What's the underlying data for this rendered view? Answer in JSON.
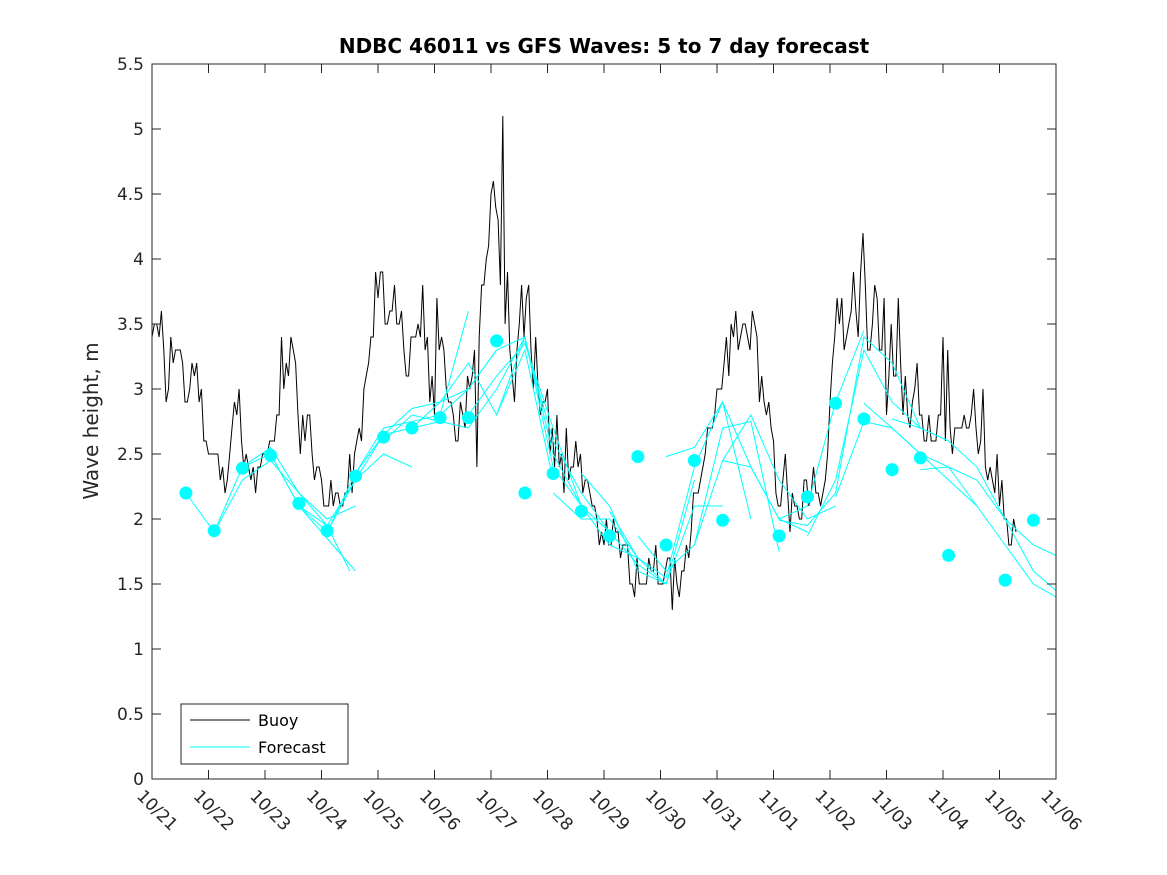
{
  "chart_data": {
    "type": "line",
    "title": "NDBC 46011 vs GFS Waves: 5 to 7 day forecast",
    "xlabel": "",
    "ylabel": "Wave height, m",
    "xlim_days": [
      0,
      16
    ],
    "ylim": [
      0,
      5.5
    ],
    "x_tick_labels": [
      "10/21",
      "10/22",
      "10/23",
      "10/24",
      "10/25",
      "10/26",
      "10/27",
      "10/28",
      "10/29",
      "10/30",
      "10/31",
      "11/01",
      "11/02",
      "11/03",
      "11/04",
      "11/05",
      "11/06"
    ],
    "y_tick_labels": [
      "0",
      "0.5",
      "1",
      "1.5",
      "2",
      "2.5",
      "3",
      "3.5",
      "4",
      "4.5",
      "5",
      "5.5"
    ],
    "y_ticks": [
      0,
      0.5,
      1,
      1.5,
      2,
      2.5,
      3,
      3.5,
      4,
      4.5,
      5,
      5.5
    ],
    "legend": {
      "placement": "bottom-left",
      "entries": [
        "Buoy",
        "Forecast"
      ]
    },
    "colors": {
      "buoy": "#000000",
      "forecast": "#00ffff",
      "axes": "#262626"
    },
    "buoy": {
      "name": "Buoy",
      "anchors": [
        [
          0.0,
          3.3
        ],
        [
          0.1,
          3.7
        ],
        [
          0.25,
          3.0
        ],
        [
          0.4,
          3.3
        ],
        [
          0.6,
          2.9
        ],
        [
          0.75,
          3.2
        ],
        [
          0.9,
          2.8
        ],
        [
          1.0,
          2.5
        ],
        [
          1.15,
          2.4
        ],
        [
          1.25,
          2.3
        ],
        [
          1.4,
          2.6
        ],
        [
          1.5,
          2.7
        ],
        [
          1.6,
          2.5
        ],
        [
          1.75,
          2.3
        ],
        [
          1.9,
          2.3
        ],
        [
          2.1,
          2.6
        ],
        [
          2.3,
          3.0
        ],
        [
          2.5,
          3.2
        ],
        [
          2.6,
          2.6
        ],
        [
          2.75,
          2.8
        ],
        [
          2.9,
          2.4
        ],
        [
          3.0,
          2.3
        ],
        [
          3.1,
          2.2
        ],
        [
          3.2,
          2.1
        ],
        [
          3.3,
          2.1
        ],
        [
          3.4,
          2.2
        ],
        [
          3.55,
          2.3
        ],
        [
          3.7,
          2.7
        ],
        [
          3.85,
          3.2
        ],
        [
          3.95,
          3.6
        ],
        [
          4.05,
          3.8
        ],
        [
          4.2,
          3.5
        ],
        [
          4.35,
          3.6
        ],
        [
          4.5,
          3.3
        ],
        [
          4.65,
          3.2
        ],
        [
          4.8,
          3.5
        ],
        [
          4.9,
          3.1
        ],
        [
          5.0,
          2.9
        ],
        [
          5.1,
          3.3
        ],
        [
          5.25,
          3.0
        ],
        [
          5.4,
          2.7
        ],
        [
          5.5,
          2.9
        ],
        [
          5.6,
          2.8
        ],
        [
          5.7,
          3.2
        ],
        [
          5.8,
          3.5
        ],
        [
          5.9,
          3.9
        ],
        [
          6.0,
          4.3
        ],
        [
          6.1,
          4.8
        ],
        [
          6.2,
          3.4
        ],
        [
          6.3,
          3.3
        ],
        [
          6.4,
          3.0
        ],
        [
          6.5,
          3.4
        ],
        [
          6.6,
          3.6
        ],
        [
          6.7,
          3.4
        ],
        [
          6.8,
          3.0
        ],
        [
          6.95,
          2.8
        ],
        [
          7.1,
          2.5
        ],
        [
          7.3,
          2.3
        ],
        [
          7.45,
          2.5
        ],
        [
          7.6,
          2.4
        ],
        [
          7.7,
          2.2
        ],
        [
          7.8,
          2.0
        ],
        [
          7.95,
          1.9
        ],
        [
          8.1,
          1.9
        ],
        [
          8.25,
          1.8
        ],
        [
          8.4,
          1.6
        ],
        [
          8.55,
          1.5
        ],
        [
          8.7,
          1.6
        ],
        [
          8.8,
          1.7
        ],
        [
          8.9,
          1.6
        ],
        [
          9.0,
          1.5
        ],
        [
          9.1,
          1.6
        ],
        [
          9.2,
          1.8
        ],
        [
          9.3,
          1.5
        ],
        [
          9.4,
          1.6
        ],
        [
          9.55,
          2.0
        ],
        [
          9.7,
          2.4
        ],
        [
          9.85,
          2.7
        ],
        [
          10.0,
          2.9
        ],
        [
          10.1,
          3.0
        ],
        [
          10.25,
          3.3
        ],
        [
          10.4,
          3.4
        ],
        [
          10.55,
          3.5
        ],
        [
          10.7,
          3.2
        ],
        [
          10.8,
          3.0
        ],
        [
          10.9,
          2.9
        ],
        [
          11.0,
          2.5
        ],
        [
          11.1,
          2.1
        ],
        [
          11.25,
          2.3
        ],
        [
          11.4,
          2.0
        ],
        [
          11.55,
          2.2
        ],
        [
          11.7,
          2.1
        ],
        [
          11.85,
          2.3
        ],
        [
          11.95,
          2.5
        ],
        [
          12.05,
          3.3
        ],
        [
          12.2,
          3.7
        ],
        [
          12.3,
          3.3
        ],
        [
          12.4,
          3.8
        ],
        [
          12.5,
          3.6
        ],
        [
          12.6,
          3.9
        ],
        [
          12.7,
          3.2
        ],
        [
          12.8,
          3.6
        ],
        [
          12.9,
          3.3
        ],
        [
          13.0,
          3.0
        ],
        [
          13.1,
          3.2
        ],
        [
          13.25,
          3.1
        ],
        [
          13.4,
          2.8
        ],
        [
          13.55,
          2.9
        ],
        [
          13.7,
          2.7
        ],
        [
          13.85,
          2.6
        ],
        [
          14.0,
          2.8
        ],
        [
          14.15,
          2.6
        ],
        [
          14.3,
          2.6
        ],
        [
          14.45,
          2.8
        ],
        [
          14.6,
          2.7
        ],
        [
          14.75,
          2.4
        ],
        [
          14.9,
          2.3
        ],
        [
          15.0,
          2.0
        ],
        [
          15.1,
          1.9
        ],
        [
          15.2,
          1.9
        ],
        [
          15.3,
          1.8
        ]
      ],
      "spikes": [
        [
          0.05,
          3.5
        ],
        [
          0.15,
          3.6
        ],
        [
          0.35,
          3.4
        ],
        [
          0.55,
          3.2
        ],
        [
          1.45,
          2.9
        ],
        [
          1.55,
          3.0
        ],
        [
          2.3,
          3.4
        ],
        [
          2.45,
          3.4
        ],
        [
          2.55,
          3.2
        ],
        [
          3.5,
          2.5
        ],
        [
          3.95,
          3.9
        ],
        [
          4.05,
          3.9
        ],
        [
          4.3,
          3.8
        ],
        [
          4.8,
          3.8
        ],
        [
          5.05,
          3.7
        ],
        [
          5.6,
          3.1
        ],
        [
          5.75,
          2.4
        ],
        [
          5.9,
          4.0
        ],
        [
          6.0,
          4.5
        ],
        [
          6.1,
          4.4
        ],
        [
          6.2,
          5.1
        ],
        [
          6.3,
          3.9
        ],
        [
          6.55,
          3.8
        ],
        [
          6.65,
          3.8
        ],
        [
          6.8,
          3.4
        ],
        [
          7.0,
          3.0
        ],
        [
          7.15,
          2.8
        ],
        [
          7.35,
          2.7
        ],
        [
          7.7,
          2.3
        ],
        [
          8.4,
          1.8
        ],
        [
          8.9,
          1.8
        ],
        [
          9.2,
          1.3
        ],
        [
          9.35,
          1.4
        ],
        [
          10.15,
          3.4
        ],
        [
          10.35,
          3.6
        ],
        [
          10.55,
          3.4
        ],
        [
          11.2,
          2.5
        ],
        [
          11.3,
          1.9
        ],
        [
          11.7,
          2.4
        ],
        [
          12.4,
          3.9
        ],
        [
          12.6,
          4.2
        ],
        [
          12.8,
          3.8
        ],
        [
          12.95,
          3.7
        ],
        [
          13.1,
          3.5
        ],
        [
          13.2,
          3.7
        ],
        [
          13.55,
          3.2
        ],
        [
          14.0,
          3.4
        ],
        [
          14.1,
          3.3
        ],
        [
          14.55,
          3.0
        ],
        [
          14.7,
          3.0
        ],
        [
          14.95,
          2.5
        ],
        [
          15.05,
          2.3
        ],
        [
          15.15,
          1.8
        ],
        [
          15.25,
          2.0
        ]
      ]
    },
    "forecast_runs": [
      {
        "name": "Forecast",
        "x": [
          0.6,
          1.1,
          1.6,
          2.1,
          2.6,
          3.0,
          3.4,
          3.6
        ],
        "y": [
          2.2,
          1.9,
          2.4,
          2.5,
          2.1,
          1.9,
          1.7,
          1.6
        ]
      },
      {
        "name": "Forecast",
        "x": [
          1.1,
          1.6,
          2.1,
          2.6,
          3.1,
          3.5
        ],
        "y": [
          1.9,
          2.3,
          2.45,
          2.2,
          1.95,
          1.6
        ]
      },
      {
        "name": "Forecast",
        "x": [
          1.6,
          2.1,
          2.6,
          3.1,
          3.6
        ],
        "y": [
          2.4,
          2.55,
          2.2,
          2.0,
          2.1
        ]
      },
      {
        "name": "Forecast",
        "x": [
          2.1,
          2.6,
          3.1,
          3.6,
          4.1,
          4.6
        ],
        "y": [
          2.5,
          2.1,
          1.95,
          2.3,
          2.5,
          2.4
        ]
      },
      {
        "name": "Forecast",
        "x": [
          2.6,
          3.1,
          3.6,
          4.1,
          4.6,
          5.1
        ],
        "y": [
          2.1,
          1.9,
          2.3,
          2.65,
          2.7,
          2.75
        ]
      },
      {
        "name": "Forecast",
        "x": [
          3.1,
          3.6,
          4.1,
          4.6,
          5.1,
          5.6
        ],
        "y": [
          1.9,
          2.35,
          2.7,
          2.75,
          2.8,
          3.6
        ]
      },
      {
        "name": "Forecast",
        "x": [
          3.6,
          4.1,
          4.6,
          5.1,
          5.6,
          6.1
        ],
        "y": [
          2.35,
          2.65,
          2.85,
          2.9,
          3.0,
          3.3
        ]
      },
      {
        "name": "Forecast",
        "x": [
          4.1,
          4.6,
          5.1,
          5.6,
          6.1,
          6.6
        ],
        "y": [
          2.6,
          2.8,
          2.75,
          2.7,
          3.0,
          3.4
        ]
      },
      {
        "name": "Forecast",
        "x": [
          4.6,
          5.1,
          5.6,
          6.1,
          6.6,
          7.1
        ],
        "y": [
          2.7,
          2.9,
          3.2,
          2.8,
          3.3,
          2.3
        ]
      },
      {
        "name": "Forecast",
        "x": [
          5.1,
          5.6,
          6.1,
          6.6,
          7.1,
          7.6
        ],
        "y": [
          2.8,
          3.0,
          3.3,
          3.4,
          2.5,
          2.1
        ]
      },
      {
        "name": "Forecast",
        "x": [
          5.6,
          6.1,
          6.6,
          7.1,
          7.6,
          8.1
        ],
        "y": [
          2.8,
          3.1,
          3.35,
          2.7,
          2.1,
          1.9
        ]
      },
      {
        "name": "Forecast",
        "x": [
          6.1,
          6.6,
          7.1,
          7.6,
          8.1,
          8.6
        ],
        "y": [
          2.8,
          3.4,
          2.4,
          2.1,
          1.8,
          1.7
        ]
      },
      {
        "name": "Forecast",
        "x": [
          6.6,
          7.1,
          7.6,
          8.1,
          8.6,
          9.1
        ],
        "y": [
          3.37,
          2.6,
          2.2,
          1.9,
          1.65,
          1.5
        ]
      },
      {
        "name": "Forecast",
        "x": [
          7.1,
          7.6,
          8.1,
          8.6,
          9.1,
          9.6
        ],
        "y": [
          2.2,
          2.0,
          2.0,
          1.7,
          1.5,
          2.3
        ]
      },
      {
        "name": "Forecast",
        "x": [
          7.6,
          8.1,
          8.6,
          9.1,
          9.6,
          10.1
        ],
        "y": [
          2.35,
          2.1,
          1.6,
          1.5,
          2.1,
          2.1
        ]
      },
      {
        "name": "Forecast",
        "x": [
          8.1,
          8.6,
          9.1,
          9.6,
          10.1,
          10.6
        ],
        "y": [
          2.06,
          1.7,
          1.55,
          2.4,
          2.9,
          2.0
        ]
      },
      {
        "name": "Forecast",
        "x": [
          8.6,
          9.1,
          9.6,
          10.1,
          10.6,
          11.1
        ],
        "y": [
          1.87,
          1.6,
          1.8,
          2.7,
          2.75,
          1.75
        ]
      },
      {
        "name": "Forecast",
        "x": [
          9.1,
          9.6,
          10.1,
          10.6,
          11.1,
          11.6
        ],
        "y": [
          2.48,
          2.55,
          2.9,
          2.4,
          2.0,
          1.9
        ]
      },
      {
        "name": "Forecast",
        "x": [
          9.6,
          10.1,
          10.6,
          11.1,
          11.6,
          12.1
        ],
        "y": [
          1.8,
          2.45,
          2.8,
          2.3,
          2.0,
          2.1
        ]
      },
      {
        "name": "Forecast",
        "x": [
          10.1,
          10.6,
          11.1,
          11.6,
          12.1,
          12.6
        ],
        "y": [
          2.45,
          2.4,
          2.0,
          2.1,
          2.9,
          3.45
        ]
      },
      {
        "name": "Forecast",
        "x": [
          11.1,
          11.6,
          12.1,
          12.6,
          13.1,
          13.6
        ],
        "y": [
          1.99,
          1.95,
          2.2,
          3.4,
          3.2,
          2.7
        ]
      },
      {
        "name": "Forecast",
        "x": [
          11.6,
          12.1,
          12.6,
          13.1,
          13.6,
          14.1
        ],
        "y": [
          1.87,
          2.3,
          3.3,
          2.9,
          2.7,
          2.6
        ]
      },
      {
        "name": "Forecast",
        "x": [
          12.1,
          12.6,
          13.1,
          13.6,
          14.1,
          14.6
        ],
        "y": [
          2.17,
          2.75,
          2.7,
          2.5,
          2.4,
          2.1
        ]
      },
      {
        "name": "Forecast",
        "x": [
          12.6,
          13.1,
          13.6,
          14.1,
          14.6,
          15.1,
          15.6,
          16.0
        ],
        "y": [
          2.89,
          2.7,
          2.5,
          2.3,
          2.1,
          1.8,
          1.5,
          1.4
        ]
      },
      {
        "name": "Forecast",
        "x": [
          13.1,
          13.6,
          14.1,
          14.6,
          15.1,
          15.6,
          16.0
        ],
        "y": [
          2.77,
          2.7,
          2.6,
          2.4,
          2.0,
          1.8,
          1.72
        ]
      },
      {
        "name": "Forecast",
        "x": [
          13.6,
          14.1,
          14.6,
          15.1,
          15.6,
          16.0
        ],
        "y": [
          2.38,
          2.4,
          2.3,
          2.0,
          1.6,
          1.45
        ]
      }
    ],
    "forecast_points": {
      "name": "Forecast",
      "x": [
        0.6,
        1.1,
        1.6,
        2.1,
        2.6,
        3.1,
        3.6,
        4.1,
        4.6,
        5.1,
        5.6,
        6.1,
        6.6,
        7.1,
        7.6,
        8.1,
        8.6,
        9.1,
        9.6,
        10.1,
        11.1,
        11.6,
        12.1,
        12.6,
        13.1,
        13.6,
        14.1,
        15.1,
        15.6
      ],
      "y": [
        2.2,
        1.91,
        2.39,
        2.49,
        2.12,
        1.91,
        2.33,
        2.63,
        2.7,
        2.78,
        2.78,
        3.37,
        2.2,
        2.35,
        2.06,
        1.87,
        2.48,
        1.8,
        2.45,
        1.99,
        1.87,
        2.17,
        2.89,
        2.77,
        2.38,
        2.47,
        1.72,
        1.53,
        1.99
      ]
    }
  }
}
